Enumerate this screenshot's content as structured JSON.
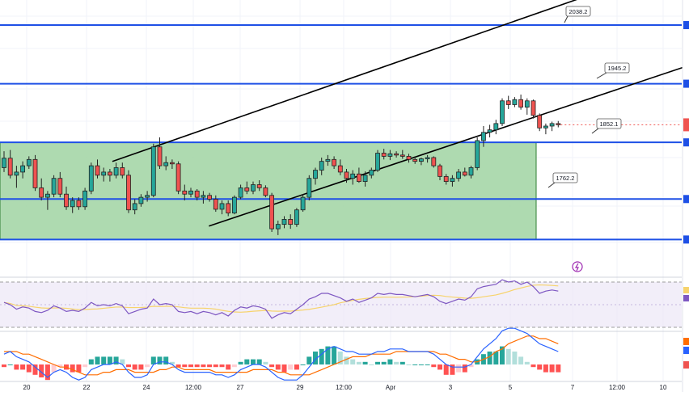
{
  "chart_data": {
    "type": "candlestick",
    "price_range": [
      1660,
      2078
    ],
    "grid": true,
    "levels": [
      {
        "price": 2038.2,
        "label": "2038.2"
      },
      {
        "price": 1945.2,
        "label": "1945.2"
      },
      {
        "price": 1852.1,
        "label": "1852.1"
      },
      {
        "price": 1762.2,
        "label": "1762.2"
      },
      {
        "price": 1698.0,
        "label": ""
      }
    ],
    "x_ticks": [
      "20",
      "22",
      "24",
      "12:00",
      "27",
      "29",
      "12:00",
      "Apr",
      "3",
      "5",
      "7",
      "12:00",
      "10"
    ],
    "range_box": {
      "top": 1852.1,
      "bottom": 1698.0
    },
    "channel": {
      "upper": [
        [
          0,
          1762
        ],
        [
          54,
          1948
        ]
      ],
      "lower": [
        [
          21,
          1680
        ],
        [
          70,
          1842
        ]
      ]
    },
    "candles": [
      [
        1812,
        1838,
        1805,
        1827
      ],
      [
        1827,
        1840,
        1795,
        1800
      ],
      [
        1800,
        1815,
        1780,
        1805
      ],
      [
        1805,
        1822,
        1795,
        1815
      ],
      [
        1815,
        1830,
        1810,
        1825
      ],
      [
        1825,
        1832,
        1775,
        1780
      ],
      [
        1780,
        1795,
        1760,
        1765
      ],
      [
        1765,
        1775,
        1745,
        1770
      ],
      [
        1770,
        1800,
        1765,
        1795
      ],
      [
        1795,
        1805,
        1765,
        1770
      ],
      [
        1770,
        1782,
        1745,
        1750
      ],
      [
        1750,
        1765,
        1740,
        1760
      ],
      [
        1760,
        1765,
        1745,
        1750
      ],
      [
        1750,
        1780,
        1745,
        1775
      ],
      [
        1775,
        1820,
        1770,
        1815
      ],
      [
        1815,
        1825,
        1795,
        1800
      ],
      [
        1800,
        1812,
        1790,
        1805
      ],
      [
        1805,
        1810,
        1790,
        1800
      ],
      [
        1800,
        1820,
        1795,
        1812
      ],
      [
        1812,
        1820,
        1795,
        1800
      ],
      [
        1800,
        1808,
        1740,
        1745
      ],
      [
        1745,
        1762,
        1738,
        1755
      ],
      [
        1755,
        1770,
        1750,
        1765
      ],
      [
        1765,
        1775,
        1758,
        1768
      ],
      [
        1768,
        1850,
        1765,
        1845
      ],
      [
        1845,
        1860,
        1810,
        1815
      ],
      [
        1815,
        1830,
        1808,
        1820
      ],
      [
        1820,
        1825,
        1810,
        1818
      ],
      [
        1818,
        1822,
        1770,
        1775
      ],
      [
        1775,
        1785,
        1760,
        1770
      ],
      [
        1770,
        1780,
        1765,
        1775
      ],
      [
        1775,
        1778,
        1760,
        1765
      ],
      [
        1765,
        1775,
        1755,
        1768
      ],
      [
        1768,
        1772,
        1758,
        1762
      ],
      [
        1762,
        1768,
        1742,
        1746
      ],
      [
        1746,
        1760,
        1738,
        1755
      ],
      [
        1755,
        1760,
        1735,
        1740
      ],
      [
        1740,
        1768,
        1738,
        1765
      ],
      [
        1765,
        1785,
        1762,
        1780
      ],
      [
        1780,
        1790,
        1770,
        1775
      ],
      [
        1775,
        1790,
        1770,
        1785
      ],
      [
        1785,
        1792,
        1775,
        1780
      ],
      [
        1780,
        1784,
        1765,
        1768
      ],
      [
        1768,
        1772,
        1710,
        1715
      ],
      [
        1715,
        1728,
        1705,
        1722
      ],
      [
        1722,
        1735,
        1716,
        1730
      ],
      [
        1730,
        1738,
        1715,
        1722
      ],
      [
        1722,
        1748,
        1718,
        1745
      ],
      [
        1745,
        1770,
        1742,
        1765
      ],
      [
        1765,
        1800,
        1760,
        1795
      ],
      [
        1795,
        1812,
        1785,
        1808
      ],
      [
        1808,
        1828,
        1800,
        1822
      ],
      [
        1822,
        1832,
        1815,
        1825
      ],
      [
        1825,
        1830,
        1810,
        1815
      ],
      [
        1815,
        1825,
        1800,
        1805
      ],
      [
        1805,
        1810,
        1788,
        1795
      ],
      [
        1795,
        1808,
        1785,
        1802
      ],
      [
        1802,
        1812,
        1788,
        1790
      ],
      [
        1790,
        1806,
        1782,
        1800
      ],
      [
        1800,
        1812,
        1795,
        1808
      ],
      [
        1808,
        1840,
        1805,
        1835
      ],
      [
        1835,
        1842,
        1825,
        1830
      ],
      [
        1830,
        1840,
        1824,
        1834
      ],
      [
        1834,
        1838,
        1828,
        1832
      ],
      [
        1832,
        1840,
        1826,
        1830
      ],
      [
        1830,
        1834,
        1820,
        1825
      ],
      [
        1825,
        1830,
        1818,
        1822
      ],
      [
        1822,
        1828,
        1816,
        1826
      ],
      [
        1826,
        1832,
        1820,
        1828
      ],
      [
        1828,
        1830,
        1812,
        1815
      ],
      [
        1815,
        1818,
        1792,
        1798
      ],
      [
        1798,
        1802,
        1785,
        1790
      ],
      [
        1790,
        1800,
        1782,
        1795
      ],
      [
        1795,
        1810,
        1790,
        1805
      ],
      [
        1805,
        1812,
        1798,
        1800
      ],
      [
        1800,
        1815,
        1795,
        1812
      ],
      [
        1812,
        1860,
        1808,
        1855
      ],
      [
        1855,
        1878,
        1845,
        1868
      ],
      [
        1868,
        1880,
        1860,
        1872
      ],
      [
        1872,
        1888,
        1865,
        1882
      ],
      [
        1882,
        1922,
        1878,
        1918
      ],
      [
        1918,
        1926,
        1905,
        1912
      ],
      [
        1912,
        1924,
        1908,
        1920
      ],
      [
        1920,
        1928,
        1904,
        1908
      ],
      [
        1908,
        1922,
        1896,
        1918
      ],
      [
        1918,
        1920,
        1890,
        1895
      ],
      [
        1895,
        1898,
        1870,
        1875
      ],
      [
        1875,
        1882,
        1865,
        1878
      ],
      [
        1878,
        1885,
        1870,
        1882
      ],
      [
        1882,
        1886,
        1876,
        1880
      ]
    ],
    "rsi": [
      52,
      50,
      46,
      48,
      47,
      44,
      43,
      45,
      49,
      47,
      44,
      45,
      44,
      47,
      52,
      49,
      50,
      49,
      51,
      49,
      42,
      44,
      46,
      47,
      55,
      50,
      51,
      50,
      44,
      43,
      44,
      42,
      44,
      43,
      41,
      43,
      40,
      45,
      48,
      47,
      49,
      48,
      46,
      38,
      41,
      43,
      42,
      46,
      50,
      55,
      57,
      60,
      60,
      58,
      56,
      53,
      55,
      52,
      54,
      56,
      60,
      59,
      60,
      59,
      59,
      58,
      57,
      58,
      59,
      57,
      53,
      51,
      53,
      55,
      54,
      57,
      64,
      66,
      67,
      68,
      72,
      70,
      71,
      68,
      70,
      66,
      60,
      62,
      63,
      62
    ],
    "macd": {
      "macd_line": [
        4,
        5,
        3,
        2,
        1,
        -1,
        -3,
        -5,
        -3,
        -2,
        -3,
        -5,
        -6,
        -5,
        -2,
        -1,
        0,
        0,
        1,
        0,
        -3,
        -5,
        -5,
        -4,
        0,
        1,
        1,
        0,
        -2,
        -3,
        -3,
        -3,
        -3,
        -3,
        -4,
        -4,
        -5,
        -4,
        -2,
        -1,
        0,
        0,
        -1,
        -3,
        -5,
        -6,
        -6,
        -6,
        -4,
        -1,
        2,
        4,
        6,
        7,
        6,
        5,
        5,
        4,
        4,
        4,
        5,
        5,
        6,
        6,
        6,
        5,
        5,
        5,
        5,
        4,
        2,
        0,
        -1,
        -1,
        -1,
        0,
        3,
        6,
        8,
        10,
        13,
        14,
        14,
        13,
        12,
        10,
        8,
        7,
        6,
        5
      ],
      "signal_line": [
        5,
        5,
        5,
        4,
        4,
        3,
        2,
        1,
        0,
        -1,
        -1,
        -2,
        -3,
        -4,
        -4,
        -4,
        -3,
        -3,
        -2,
        -2,
        -2,
        -3,
        -3,
        -3,
        -3,
        -2,
        -2,
        -1,
        -1,
        -2,
        -2,
        -2,
        -2,
        -2,
        -3,
        -3,
        -3,
        -3,
        -3,
        -3,
        -2,
        -2,
        -2,
        -2,
        -3,
        -3,
        -4,
        -4,
        -4,
        -4,
        -3,
        -2,
        -1,
        0,
        1,
        2,
        3,
        3,
        3,
        4,
        4,
        4,
        4,
        5,
        5,
        5,
        5,
        5,
        5,
        5,
        4,
        4,
        3,
        2,
        2,
        1,
        1,
        2,
        3,
        5,
        6,
        8,
        9,
        10,
        11,
        11,
        10,
        10,
        9,
        8
      ],
      "histogram": [
        -1,
        0,
        -2,
        -2,
        -3,
        -4,
        -5,
        -6,
        -3,
        -1,
        -2,
        -3,
        -3,
        -1,
        2,
        3,
        3,
        3,
        3,
        2,
        -1,
        -2,
        -2,
        -1,
        3,
        3,
        3,
        1,
        -1,
        -1,
        -1,
        -1,
        -1,
        -1,
        -1,
        -1,
        -2,
        -1,
        1,
        2,
        2,
        2,
        1,
        -1,
        -2,
        -3,
        -2,
        -2,
        0,
        3,
        5,
        6,
        7,
        7,
        5,
        3,
        2,
        1,
        1,
        0,
        1,
        1,
        2,
        1,
        1,
        0,
        0,
        0,
        0,
        -1,
        -2,
        -4,
        -4,
        -3,
        -3,
        -1,
        2,
        4,
        5,
        5,
        7,
        6,
        5,
        3,
        1,
        -1,
        -2,
        -3,
        -3,
        -3
      ]
    },
    "colors": {
      "up": "#26a69a",
      "down": "#ef5350",
      "level_line": "#1e50e6",
      "box_fill": "#a5d6a7",
      "box_stroke": "#2e7d32",
      "rsi": "#7e57c2",
      "rsi_ma": "#f7d36b",
      "macd": "#2962ff",
      "signal": "#ff6d00",
      "hist_up_strong": "#26a69a",
      "hist_up_weak": "#b2dfdb",
      "hist_down_strong": "#ff5252",
      "hist_down_weak": "#ffcdd2"
    }
  }
}
